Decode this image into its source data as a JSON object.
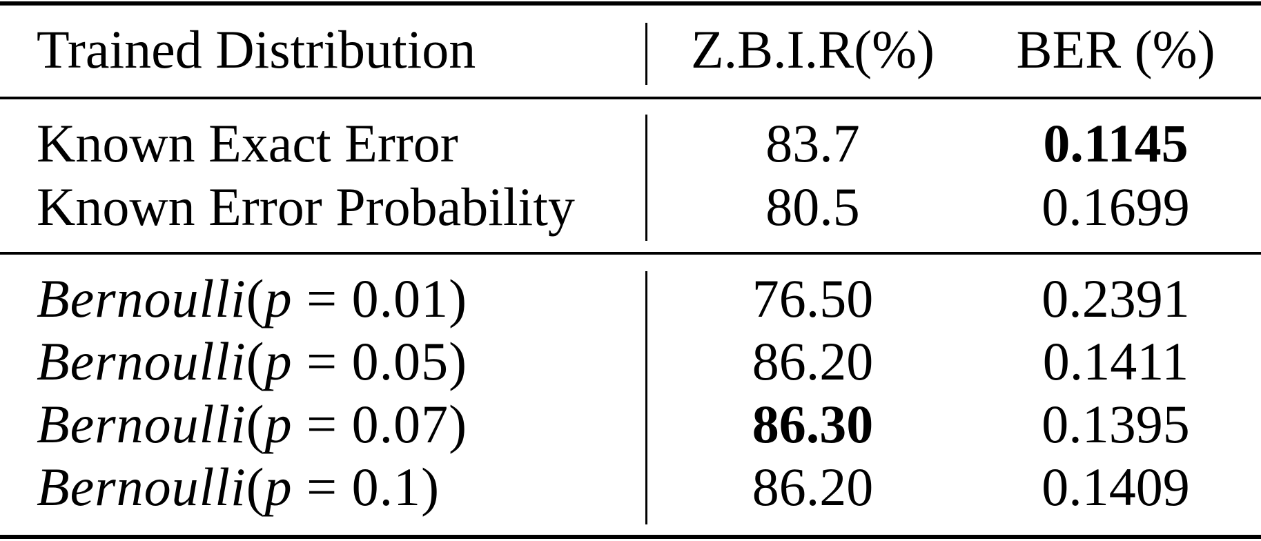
{
  "table": {
    "header": {
      "distribution": "Trained Distribution",
      "zbir": "Z.B.I.R(%)",
      "ber": "BER (%)"
    },
    "group1": [
      {
        "label": "Known Exact Error",
        "zbir": "83.7",
        "ber": "0.1145",
        "ber_bold": true
      },
      {
        "label": "Known Error Probability",
        "zbir": "80.5",
        "ber": "0.1699"
      }
    ],
    "group2": [
      {
        "dist": "Bernoulli",
        "param": "p",
        "eq": "=",
        "p_value": "0.01",
        "zbir": "76.50",
        "ber": "0.2391"
      },
      {
        "dist": "Bernoulli",
        "param": "p",
        "eq": "=",
        "p_value": "0.05",
        "zbir": "86.20",
        "ber": "0.1411"
      },
      {
        "dist": "Bernoulli",
        "param": "p",
        "eq": "=",
        "p_value": "0.07",
        "zbir": "86.30",
        "ber": "0.1395",
        "zbir_bold": true
      },
      {
        "dist": "Bernoulli",
        "param": "p",
        "eq": "=",
        "p_value": "0.1",
        "zbir": "86.20",
        "ber": "0.1409"
      }
    ]
  }
}
